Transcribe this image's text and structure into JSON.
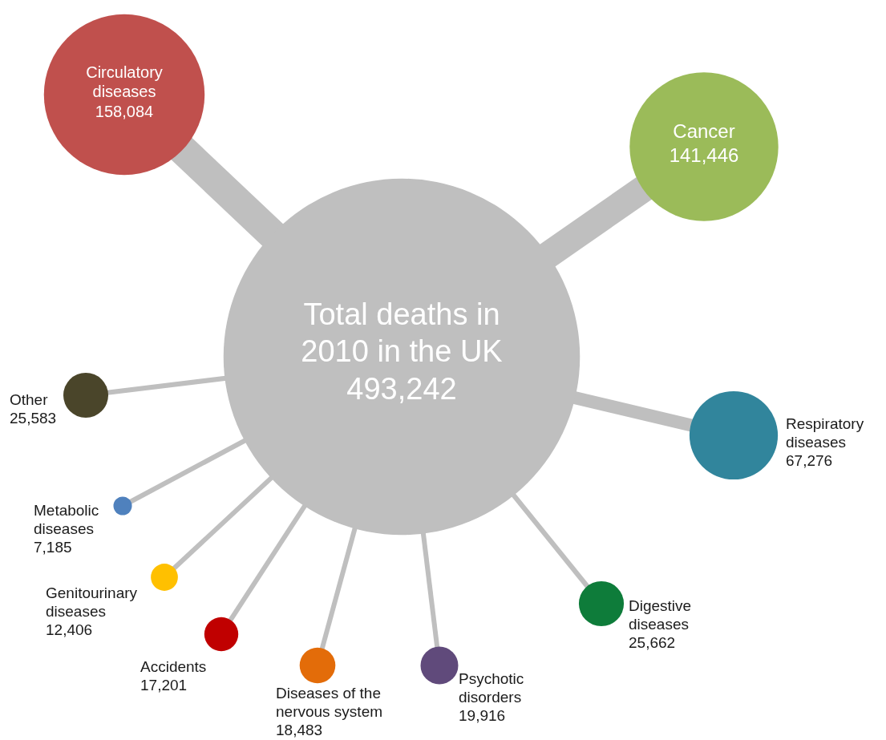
{
  "chart_data": {
    "type": "other",
    "categories": [
      "Total deaths in 2010 in the UK",
      "Circulatory diseases",
      "Cancer",
      "Respiratory diseases",
      "Digestive diseases",
      "Psychotic disorders",
      "Diseases of the nervous system",
      "Accidents",
      "Genitourinary diseases",
      "Metabolic diseases",
      "Other"
    ],
    "values": [
      493242,
      158084,
      141446,
      67276,
      25662,
      19916,
      18483,
      17201,
      12406,
      7185,
      25583
    ],
    "colors": [
      "#bfbfbf",
      "#c0504d",
      "#9bbb59",
      "#31859c",
      "#0e7c3a",
      "#604a7b",
      "#e36c09",
      "#c00000",
      "#ffc000",
      "#4f81bd",
      "#4a452a"
    ],
    "value_labels": [
      "493,242",
      "158,084",
      "141,446",
      "67,276",
      "25,662",
      "19,916",
      "18,483",
      "17,201",
      "12,406",
      "7,185",
      "25,583"
    ]
  }
}
